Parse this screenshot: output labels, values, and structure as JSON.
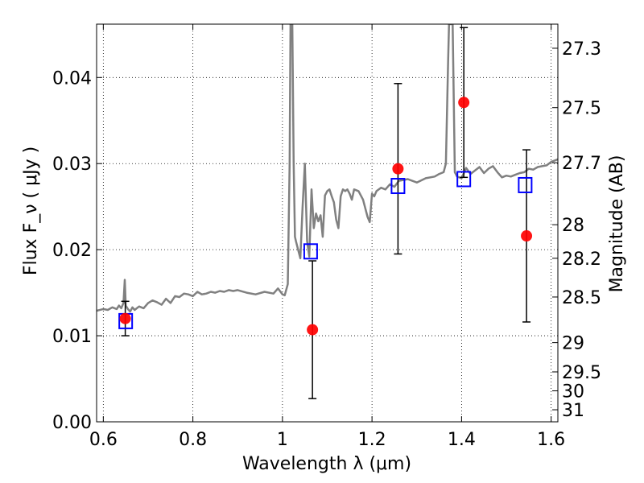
{
  "chart_data": {
    "type": "scatter",
    "xlabel": "Wavelength  λ (μm)",
    "ylabel": "Flux  F_ν  ( μJy )",
    "y2label": "Magnitude (AB)",
    "xlim": [
      0.585,
      1.615
    ],
    "ylim": [
      0.0,
      0.0462
    ],
    "grid": true,
    "x_ticks": [
      0.6,
      0.8,
      1.0,
      1.2,
      1.4,
      1.6
    ],
    "x_tick_labels": [
      "0.6",
      "0.8",
      "1",
      "1.2",
      "1.4",
      "1.6"
    ],
    "y_ticks": [
      0.0,
      0.01,
      0.02,
      0.03,
      0.04
    ],
    "y_tick_labels": [
      "0.00",
      "0.01",
      "0.02",
      "0.03",
      "0.04"
    ],
    "mag_ticks": [
      {
        "label": "27.3",
        "flux": 0.0434
      },
      {
        "label": "27.5",
        "flux": 0.0365
      },
      {
        "label": "27.7",
        "flux": 0.0301
      },
      {
        "label": "28",
        "flux": 0.0229
      },
      {
        "label": "28.2",
        "flux": 0.019
      },
      {
        "label": "28.5",
        "flux": 0.0145
      },
      {
        "label": "29",
        "flux": 0.0092
      },
      {
        "label": "29.5",
        "flux": 0.0058
      },
      {
        "label": "30",
        "flux": 0.0036
      },
      {
        "label": "31",
        "flux": 0.0014
      }
    ],
    "series": [
      {
        "kind": "line",
        "color": "#808080",
        "x": [
          0.585,
          0.6,
          0.61,
          0.62,
          0.63,
          0.635,
          0.64,
          0.645,
          0.648,
          0.65,
          0.655,
          0.66,
          0.665,
          0.67,
          0.68,
          0.69,
          0.7,
          0.71,
          0.72,
          0.73,
          0.74,
          0.75,
          0.76,
          0.77,
          0.78,
          0.79,
          0.8,
          0.81,
          0.82,
          0.83,
          0.84,
          0.85,
          0.86,
          0.87,
          0.88,
          0.89,
          0.9,
          0.92,
          0.94,
          0.96,
          0.98,
          0.99,
          1.0,
          1.005,
          1.012,
          1.016,
          1.018,
          1.02,
          1.022,
          1.025,
          1.028,
          1.03,
          1.035,
          1.04,
          1.045,
          1.05,
          1.055,
          1.06,
          1.065,
          1.07,
          1.075,
          1.08,
          1.085,
          1.09,
          1.095,
          1.1,
          1.105,
          1.11,
          1.115,
          1.12,
          1.125,
          1.13,
          1.135,
          1.14,
          1.145,
          1.15,
          1.155,
          1.16,
          1.17,
          1.18,
          1.19,
          1.195,
          1.2,
          1.205,
          1.21,
          1.22,
          1.23,
          1.24,
          1.25,
          1.26,
          1.28,
          1.3,
          1.32,
          1.34,
          1.35,
          1.36,
          1.365,
          1.37,
          1.372,
          1.375,
          1.38,
          1.385,
          1.39,
          1.4,
          1.41,
          1.42,
          1.43,
          1.44,
          1.45,
          1.46,
          1.47,
          1.48,
          1.49,
          1.5,
          1.51,
          1.52,
          1.53,
          1.54,
          1.55,
          1.56,
          1.57,
          1.58,
          1.59,
          1.6,
          1.615
        ],
        "y": [
          0.0129,
          0.0131,
          0.013,
          0.0133,
          0.0131,
          0.0135,
          0.0132,
          0.0138,
          0.0165,
          0.0135,
          0.0131,
          0.0128,
          0.0133,
          0.013,
          0.0134,
          0.0132,
          0.0138,
          0.0141,
          0.0139,
          0.0136,
          0.0143,
          0.0138,
          0.0146,
          0.0145,
          0.0149,
          0.0148,
          0.0146,
          0.0151,
          0.0148,
          0.0149,
          0.0151,
          0.015,
          0.0152,
          0.0151,
          0.0153,
          0.0152,
          0.0153,
          0.015,
          0.0148,
          0.0151,
          0.0149,
          0.0155,
          0.0148,
          0.0147,
          0.016,
          0.03,
          0.0462,
          0.0462,
          0.0462,
          0.03,
          0.0215,
          0.021,
          0.02,
          0.019,
          0.025,
          0.03,
          0.021,
          0.0192,
          0.027,
          0.0225,
          0.0242,
          0.0233,
          0.024,
          0.0215,
          0.0263,
          0.0268,
          0.027,
          0.0262,
          0.0255,
          0.0235,
          0.0225,
          0.0262,
          0.027,
          0.0268,
          0.027,
          0.0265,
          0.0258,
          0.027,
          0.0268,
          0.0258,
          0.0238,
          0.0232,
          0.0265,
          0.0262,
          0.0268,
          0.0272,
          0.027,
          0.0276,
          0.0273,
          0.028,
          0.0282,
          0.0278,
          0.0283,
          0.0285,
          0.0288,
          0.029,
          0.03,
          0.042,
          0.0462,
          0.0462,
          0.0462,
          0.029,
          0.0285,
          0.0283,
          0.0295,
          0.0288,
          0.0292,
          0.0296,
          0.0289,
          0.0294,
          0.0297,
          0.029,
          0.0284,
          0.0286,
          0.0285,
          0.0287,
          0.0289,
          0.029,
          0.0294,
          0.0293,
          0.0296,
          0.0297,
          0.0298,
          0.0302,
          0.0305
        ]
      },
      {
        "kind": "errorbar",
        "marker": "circle",
        "color": "#ff0000",
        "points": [
          {
            "x": 0.649,
            "y": 0.012,
            "err": 0.002
          },
          {
            "x": 1.067,
            "y": 0.0107,
            "err": 0.008
          },
          {
            "x": 1.258,
            "y": 0.0294,
            "err": 0.0099
          },
          {
            "x": 1.405,
            "y": 0.0371,
            "err": 0.0087
          },
          {
            "x": 1.545,
            "y": 0.0216,
            "err": 0.01
          }
        ]
      },
      {
        "kind": "scatter",
        "marker": "open-square",
        "color": "#0000ff",
        "points": [
          {
            "x": 0.65,
            "y": 0.0117
          },
          {
            "x": 1.063,
            "y": 0.0198
          },
          {
            "x": 1.258,
            "y": 0.0274
          },
          {
            "x": 1.405,
            "y": 0.0282
          },
          {
            "x": 1.542,
            "y": 0.0275
          }
        ]
      }
    ]
  }
}
